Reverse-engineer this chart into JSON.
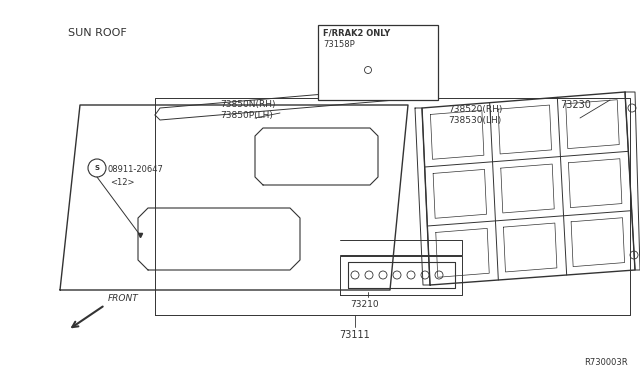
{
  "bg_color": "#ffffff",
  "line_color": "#333333",
  "fig_width": 6.4,
  "fig_height": 3.72,
  "title": "SUN ROOF",
  "ref_code": "R730003R",
  "frrак2_label": "F/RRAK2 ONLY",
  "part_73158p": "73158P",
  "label_73850": "73850N(RH)\n73850P(LH)",
  "label_08911": "08911-20647",
  "label_12": "<12>",
  "label_738520": "738520(RH)\n738530(LH)",
  "label_73230": "73230",
  "label_73210": "73210",
  "label_73111": "73111",
  "label_front": "FRONT"
}
